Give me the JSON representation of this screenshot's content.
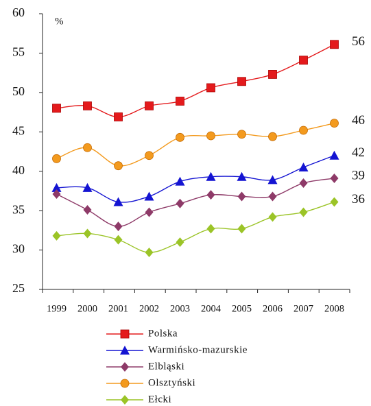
{
  "chart_data": {
    "type": "line",
    "y_unit": "%",
    "categories": [
      "1999",
      "2000",
      "2001",
      "2002",
      "2003",
      "2004",
      "2005",
      "2006",
      "2007",
      "2008"
    ],
    "series": [
      {
        "name": "Polska",
        "color": "#e41a1c",
        "marker": "square",
        "values": [
          48.0,
          48.3,
          46.9,
          48.3,
          48.9,
          50.6,
          51.4,
          52.3,
          54.1,
          56.1
        ],
        "end_label": "56"
      },
      {
        "name": "Warmińsko-mazurskie",
        "color": "#1414d2",
        "marker": "triangle",
        "values": [
          37.9,
          37.9,
          36.1,
          36.8,
          38.7,
          39.3,
          39.3,
          38.9,
          40.5,
          42.0
        ],
        "end_label": "42"
      },
      {
        "name": "Elbląski",
        "color": "#8e3a68",
        "marker": "diamond",
        "values": [
          37.1,
          35.1,
          33.0,
          34.8,
          35.9,
          37.0,
          36.8,
          36.8,
          38.5,
          39.1
        ],
        "end_label": "39"
      },
      {
        "name": "Olsztyński",
        "color": "#f39a1e",
        "marker": "circle",
        "values": [
          41.6,
          43.0,
          40.7,
          42.0,
          44.3,
          44.5,
          44.7,
          44.4,
          45.2,
          46.1
        ],
        "end_label": "46"
      },
      {
        "name": "Ełcki",
        "color": "#9bc427",
        "marker": "diamond",
        "values": [
          31.8,
          32.1,
          31.3,
          29.7,
          31.0,
          32.7,
          32.7,
          34.2,
          34.8,
          36.1
        ],
        "end_label": "36"
      }
    ],
    "ylim": [
      25,
      60
    ],
    "yticks": [
      25,
      30,
      35,
      40,
      45,
      50,
      55,
      60
    ],
    "grid": false,
    "legend": "bottom"
  }
}
